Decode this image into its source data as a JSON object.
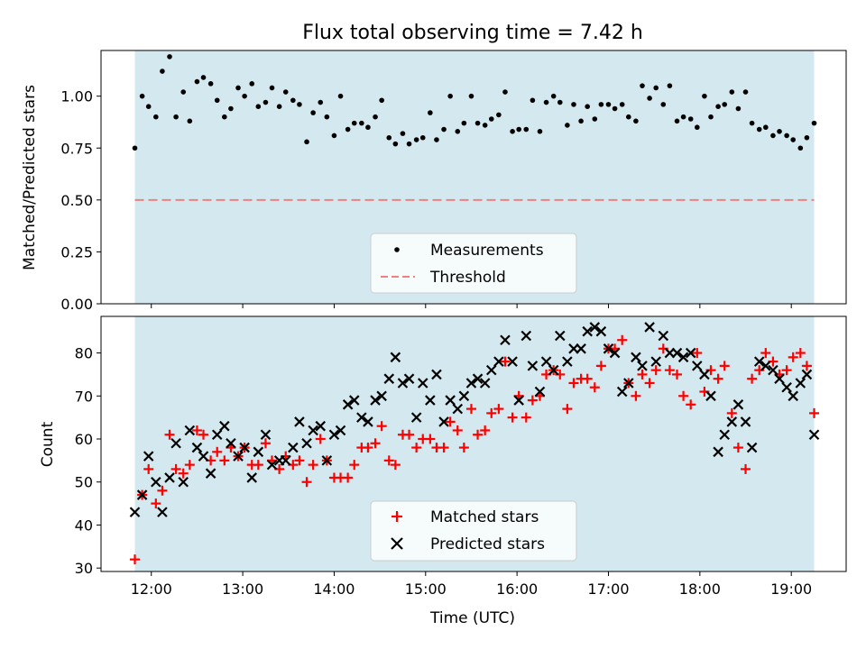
{
  "chart_data": [
    {
      "type": "scatter",
      "title": "Flux total observing time = 7.42 h",
      "xlabel": "",
      "ylabel": "Matched/Predicted stars",
      "ylim": [
        0,
        1.22
      ],
      "yticks": [
        0.0,
        0.25,
        0.5,
        0.75,
        1.0
      ],
      "ytick_labels": [
        "0.00",
        "0.25",
        "0.50",
        "0.75",
        "1.00"
      ],
      "xlim_hours": [
        11.45,
        19.6
      ],
      "shaded_span_hours": [
        11.82,
        19.25
      ],
      "shade_color": "#d3e9ef",
      "legend_loc": "lower center",
      "series": [
        {
          "name": "Measurements",
          "marker": "dot",
          "color": "#000000",
          "x": [
            11.82,
            11.9,
            11.97,
            12.05,
            12.12,
            12.2,
            12.27,
            12.35,
            12.42,
            12.5,
            12.57,
            12.65,
            12.72,
            12.8,
            12.87,
            12.95,
            13.02,
            13.1,
            13.17,
            13.25,
            13.32,
            13.4,
            13.47,
            13.55,
            13.62,
            13.7,
            13.77,
            13.85,
            13.92,
            14.0,
            14.07,
            14.15,
            14.22,
            14.3,
            14.37,
            14.45,
            14.52,
            14.6,
            14.67,
            14.75,
            14.82,
            14.9,
            14.97,
            15.05,
            15.12,
            15.2,
            15.27,
            15.35,
            15.42,
            15.5,
            15.57,
            15.65,
            15.72,
            15.8,
            15.87,
            15.95,
            16.02,
            16.1,
            16.17,
            16.25,
            16.32,
            16.4,
            16.47,
            16.55,
            16.62,
            16.7,
            16.77,
            16.85,
            16.92,
            17.0,
            17.07,
            17.15,
            17.22,
            17.3,
            17.37,
            17.45,
            17.52,
            17.6,
            17.67,
            17.75,
            17.82,
            17.9,
            17.97,
            18.05,
            18.12,
            18.2,
            18.27,
            18.35,
            18.42,
            18.5,
            18.57,
            18.65,
            18.72,
            18.8,
            18.87,
            18.95,
            19.02,
            19.1,
            19.17,
            19.25
          ],
          "y": [
            0.75,
            1.0,
            0.95,
            0.9,
            1.12,
            1.19,
            0.9,
            1.02,
            0.88,
            1.07,
            1.09,
            1.06,
            0.98,
            0.9,
            0.94,
            1.04,
            1.0,
            1.06,
            0.95,
            0.97,
            1.04,
            0.95,
            1.02,
            0.98,
            0.96,
            0.78,
            0.92,
            0.97,
            0.9,
            0.81,
            1.0,
            0.84,
            0.87,
            0.87,
            0.85,
            0.9,
            0.98,
            0.8,
            0.77,
            0.82,
            0.77,
            0.79,
            0.8,
            0.92,
            0.79,
            0.84,
            1.0,
            0.83,
            0.87,
            1.0,
            0.87,
            0.86,
            0.89,
            0.91,
            1.02,
            0.83,
            0.84,
            0.84,
            0.98,
            0.83,
            0.97,
            1.0,
            0.97,
            0.86,
            0.96,
            0.88,
            0.95,
            0.89,
            0.96,
            0.96,
            0.94,
            0.96,
            0.9,
            0.88,
            1.05,
            0.99,
            1.04,
            0.96,
            1.05,
            0.88,
            0.9,
            0.89,
            0.85,
            1.0,
            0.9,
            0.95,
            0.96,
            1.02,
            0.94,
            1.02,
            0.87,
            0.84,
            0.85,
            0.81,
            0.83,
            0.81,
            0.79,
            0.75,
            0.8,
            0.87
          ]
        },
        {
          "name": "Threshold",
          "style": "dashed",
          "color": "#f08080",
          "x": [
            11.82,
            19.25
          ],
          "y": [
            0.5,
            0.5
          ]
        }
      ]
    },
    {
      "type": "scatter",
      "title": "",
      "xlabel": "Time (UTC)",
      "ylabel": "Count",
      "ylim": [
        29.2,
        88.5
      ],
      "yticks": [
        30,
        40,
        50,
        60,
        70,
        80
      ],
      "ytick_labels": [
        "30",
        "40",
        "50",
        "60",
        "70",
        "80"
      ],
      "xlim_hours": [
        11.45,
        19.6
      ],
      "xticks_hours": [
        12,
        13,
        14,
        15,
        16,
        17,
        18,
        19
      ],
      "xtick_labels": [
        "12:00",
        "13:00",
        "14:00",
        "15:00",
        "16:00",
        "17:00",
        "18:00",
        "19:00"
      ],
      "shaded_span_hours": [
        11.82,
        19.25
      ],
      "shade_color": "#d3e9ef",
      "legend_loc": "lower center",
      "series": [
        {
          "name": "Matched stars",
          "marker": "plus",
          "color": "#ff0000",
          "x": [
            11.82,
            11.9,
            11.97,
            12.05,
            12.12,
            12.2,
            12.27,
            12.35,
            12.42,
            12.5,
            12.57,
            12.65,
            12.72,
            12.8,
            12.87,
            12.95,
            13.02,
            13.1,
            13.17,
            13.25,
            13.32,
            13.4,
            13.47,
            13.55,
            13.62,
            13.7,
            13.77,
            13.85,
            13.92,
            14.0,
            14.07,
            14.15,
            14.22,
            14.3,
            14.37,
            14.45,
            14.52,
            14.6,
            14.67,
            14.75,
            14.82,
            14.9,
            14.97,
            15.05,
            15.12,
            15.2,
            15.27,
            15.35,
            15.42,
            15.5,
            15.57,
            15.65,
            15.72,
            15.8,
            15.87,
            15.95,
            16.02,
            16.1,
            16.17,
            16.25,
            16.32,
            16.4,
            16.47,
            16.55,
            16.62,
            16.7,
            16.77,
            16.85,
            16.92,
            17.0,
            17.07,
            17.15,
            17.22,
            17.3,
            17.37,
            17.45,
            17.52,
            17.6,
            17.67,
            17.75,
            17.82,
            17.9,
            17.97,
            18.05,
            18.12,
            18.2,
            18.27,
            18.35,
            18.42,
            18.5,
            18.57,
            18.65,
            18.72,
            18.8,
            18.87,
            18.95,
            19.02,
            19.1,
            19.17,
            19.25
          ],
          "y": [
            32,
            47,
            53,
            45,
            48,
            61,
            53,
            52,
            54,
            62,
            61,
            55,
            57,
            55,
            58,
            56,
            58,
            54,
            54,
            59,
            55,
            53,
            56,
            54,
            55,
            50,
            54,
            60,
            55,
            51,
            51,
            51,
            54,
            58,
            58,
            59,
            63,
            55,
            54,
            61,
            61,
            58,
            60,
            60,
            58,
            58,
            64,
            62,
            58,
            67,
            61,
            62,
            66,
            67,
            78,
            65,
            70,
            65,
            69,
            70,
            75,
            76,
            75,
            67,
            73,
            74,
            74,
            72,
            77,
            81,
            81,
            83,
            73,
            70,
            75,
            73,
            76,
            81,
            76,
            75,
            70,
            68,
            80,
            71,
            76,
            74,
            77,
            66,
            58,
            53,
            74,
            76,
            80,
            78,
            75,
            76,
            79,
            80,
            77,
            66
          ]
        },
        {
          "name": "Predicted stars",
          "marker": "x",
          "color": "#000000",
          "x": [
            11.82,
            11.9,
            11.97,
            12.05,
            12.12,
            12.2,
            12.27,
            12.35,
            12.42,
            12.5,
            12.57,
            12.65,
            12.72,
            12.8,
            12.87,
            12.95,
            13.02,
            13.1,
            13.17,
            13.25,
            13.32,
            13.4,
            13.47,
            13.55,
            13.62,
            13.7,
            13.77,
            13.85,
            13.92,
            14.0,
            14.07,
            14.15,
            14.22,
            14.3,
            14.37,
            14.45,
            14.52,
            14.6,
            14.67,
            14.75,
            14.82,
            14.9,
            14.97,
            15.05,
            15.12,
            15.2,
            15.27,
            15.35,
            15.42,
            15.5,
            15.57,
            15.65,
            15.72,
            15.8,
            15.87,
            15.95,
            16.02,
            16.1,
            16.17,
            16.25,
            16.32,
            16.4,
            16.47,
            16.55,
            16.62,
            16.7,
            16.77,
            16.85,
            16.92,
            17.0,
            17.07,
            17.15,
            17.22,
            17.3,
            17.37,
            17.45,
            17.52,
            17.6,
            17.67,
            17.75,
            17.82,
            17.9,
            17.97,
            18.05,
            18.12,
            18.2,
            18.27,
            18.35,
            18.42,
            18.5,
            18.57,
            18.65,
            18.72,
            18.8,
            18.87,
            18.95,
            19.02,
            19.1,
            19.17,
            19.25
          ],
          "y": [
            43,
            47,
            56,
            50,
            43,
            51,
            59,
            50,
            62,
            58,
            56,
            52,
            61,
            63,
            59,
            56,
            58,
            51,
            57,
            61,
            54,
            55,
            55,
            58,
            64,
            59,
            62,
            63,
            55,
            61,
            62,
            68,
            69,
            65,
            64,
            69,
            70,
            74,
            79,
            73,
            74,
            65,
            73,
            69,
            75,
            64,
            69,
            67,
            70,
            73,
            74,
            73,
            76,
            78,
            83,
            78,
            69,
            84,
            77,
            71,
            78,
            76,
            84,
            78,
            81,
            81,
            85,
            86,
            85,
            81,
            80,
            71,
            73,
            79,
            77,
            86,
            78,
            84,
            80,
            80,
            79,
            80,
            77,
            75,
            70,
            57,
            61,
            64,
            68,
            64,
            58,
            78,
            77,
            76,
            74,
            72,
            70,
            73,
            75,
            61
          ]
        }
      ]
    }
  ]
}
